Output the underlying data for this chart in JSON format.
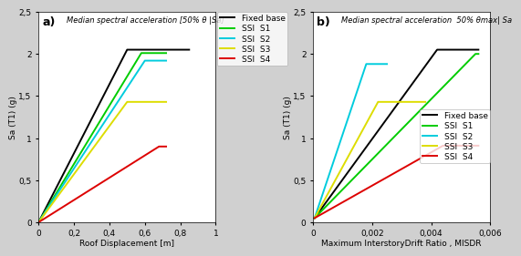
{
  "plot_a": {
    "title": "Median spectral acceleration [50% θ |Sa]",
    "xlabel": "Roof Displacement [m]",
    "ylabel": "Sa (T1) (g)",
    "xlim": [
      0,
      1.0
    ],
    "ylim": [
      0,
      2.5
    ],
    "xticks": [
      0,
      0.2,
      0.4,
      0.6,
      0.8,
      1.0
    ],
    "yticks": [
      0,
      0.5,
      1.0,
      1.5,
      2.0,
      2.5
    ],
    "xtick_labels": [
      "0",
      "0,2",
      "0,4",
      "0,6",
      "0,8",
      "1"
    ],
    "ytick_labels": [
      "0",
      "0,5",
      "1",
      "1,5",
      "2",
      "2,5"
    ],
    "lines": {
      "Fixed base": {
        "color": "#000000",
        "x": [
          0,
          0.5,
          0.85
        ],
        "y": [
          0,
          2.05,
          2.05
        ]
      },
      "SSI  S1": {
        "color": "#00cc00",
        "x": [
          0,
          0.58,
          0.72
        ],
        "y": [
          0,
          2.01,
          2.01
        ]
      },
      "SSI  S2": {
        "color": "#00ccdd",
        "x": [
          0,
          0.6,
          0.72
        ],
        "y": [
          0,
          1.92,
          1.92
        ]
      },
      "SSI  S3": {
        "color": "#dddd00",
        "x": [
          0,
          0.5,
          0.72
        ],
        "y": [
          0,
          1.43,
          1.43
        ]
      },
      "SSI  S4": {
        "color": "#dd0000",
        "x": [
          0,
          0.68,
          0.72
        ],
        "y": [
          0,
          0.9,
          0.9
        ]
      }
    },
    "label": "a)"
  },
  "plot_b": {
    "title": "Median spectral acceleration  50% θmax| Sa",
    "xlabel": "Maximum InterstoryDrift Ratio , MISDR",
    "ylabel": "Sa (T1) (g)",
    "xlim": [
      0,
      0.006
    ],
    "ylim": [
      0,
      2.5
    ],
    "xticks": [
      0,
      0.002,
      0.004,
      0.006
    ],
    "yticks": [
      0,
      0.5,
      1.0,
      1.5,
      2.0,
      2.5
    ],
    "xtick_labels": [
      "0",
      "0,002",
      "0,004",
      "0,006"
    ],
    "ytick_labels": [
      "0",
      "0,5",
      "1",
      "1,5",
      "2",
      "2,5"
    ],
    "lines": {
      "Fixed base": {
        "color": "#000000",
        "x": [
          5e-05,
          0.0042,
          0.0056
        ],
        "y": [
          0.05,
          2.05,
          2.05
        ]
      },
      "SSI  S1": {
        "color": "#00cc00",
        "x": [
          5e-05,
          0.0055,
          0.0056
        ],
        "y": [
          0.05,
          2.0,
          2.0
        ]
      },
      "SSI  S2": {
        "color": "#00ccdd",
        "x": [
          5e-05,
          0.0018,
          0.0025
        ],
        "y": [
          0.05,
          1.88,
          1.88
        ]
      },
      "SSI  S3": {
        "color": "#dddd00",
        "x": [
          5e-05,
          0.0022,
          0.0038
        ],
        "y": [
          0.05,
          1.43,
          1.43
        ]
      },
      "SSI  S4": {
        "color": "#dd0000",
        "x": [
          5e-05,
          0.0044,
          0.0056
        ],
        "y": [
          0.05,
          0.91,
          0.91
        ]
      }
    },
    "label": "b)"
  },
  "background_color": "#d0d0d0",
  "panel_color": "#ffffff",
  "legend_fontsize": 6.5,
  "axis_fontsize": 6.5,
  "title_fontsize": 6.0,
  "label_fontsize": 9
}
